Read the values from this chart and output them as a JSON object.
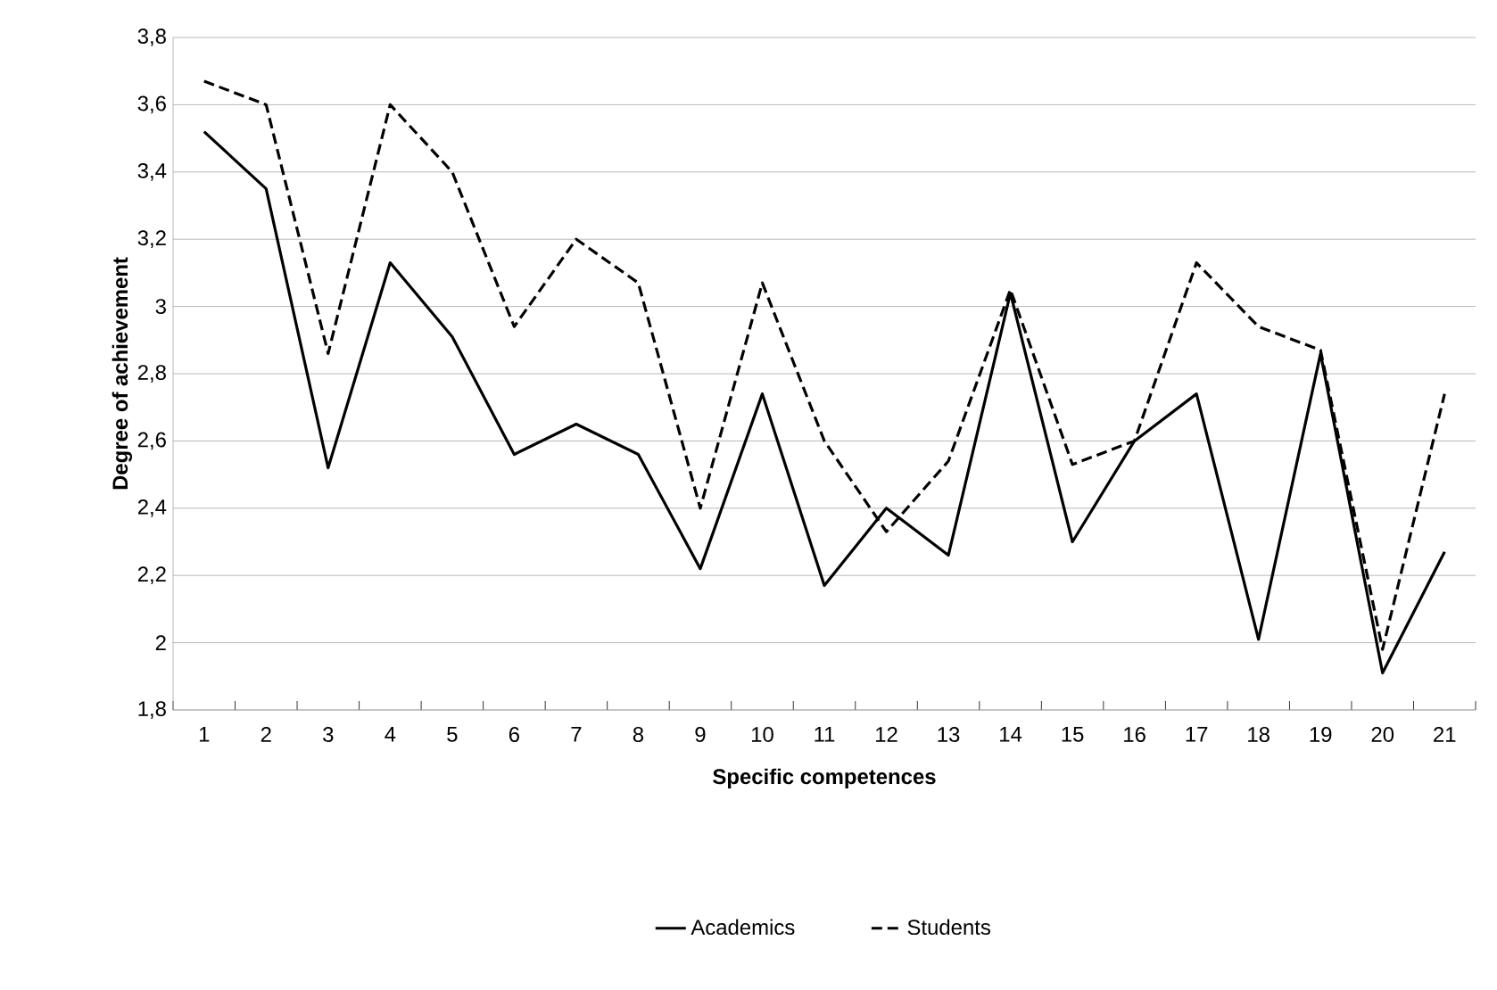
{
  "chart_data": {
    "type": "line",
    "xlabel": "Specific competences",
    "ylabel": "Degree of achievement",
    "categories": [
      "1",
      "2",
      "3",
      "4",
      "5",
      "6",
      "7",
      "8",
      "9",
      "10",
      "11",
      "12",
      "13",
      "14",
      "15",
      "16",
      "17",
      "18",
      "19",
      "20",
      "21"
    ],
    "series": [
      {
        "name": "Academics",
        "color": "#000000",
        "line_style": "solid",
        "values": [
          3.52,
          3.35,
          2.52,
          3.13,
          2.91,
          2.56,
          2.65,
          2.56,
          2.22,
          2.74,
          2.17,
          2.4,
          2.26,
          3.04,
          2.3,
          2.6,
          2.74,
          2.01,
          2.86,
          1.91,
          2.27
        ]
      },
      {
        "name": "Students",
        "color": "#000000",
        "line_style": "dashed",
        "values": [
          3.67,
          3.6,
          2.86,
          3.6,
          3.4,
          2.94,
          3.2,
          3.07,
          2.4,
          3.07,
          2.6,
          2.33,
          2.54,
          3.05,
          2.53,
          2.6,
          3.13,
          2.94,
          2.87,
          1.98,
          2.74
        ]
      }
    ],
    "ylim": [
      1.8,
      3.8
    ],
    "yticks": [
      {
        "value": 1.8,
        "label": "1,8"
      },
      {
        "value": 2,
        "label": "2"
      },
      {
        "value": 2.2,
        "label": "2,2"
      },
      {
        "value": 2.4,
        "label": "2,4"
      },
      {
        "value": 2.6,
        "label": "2,6"
      },
      {
        "value": 2.8,
        "label": "2,8"
      },
      {
        "value": 3,
        "label": "3"
      },
      {
        "value": 3.2,
        "label": "3,2"
      },
      {
        "value": 3.4,
        "label": "3,4"
      },
      {
        "value": 3.6,
        "label": "3,6"
      },
      {
        "value": 3.8,
        "label": "3,8"
      }
    ],
    "grid": "y",
    "legend": "bottom",
    "marker": "none"
  }
}
